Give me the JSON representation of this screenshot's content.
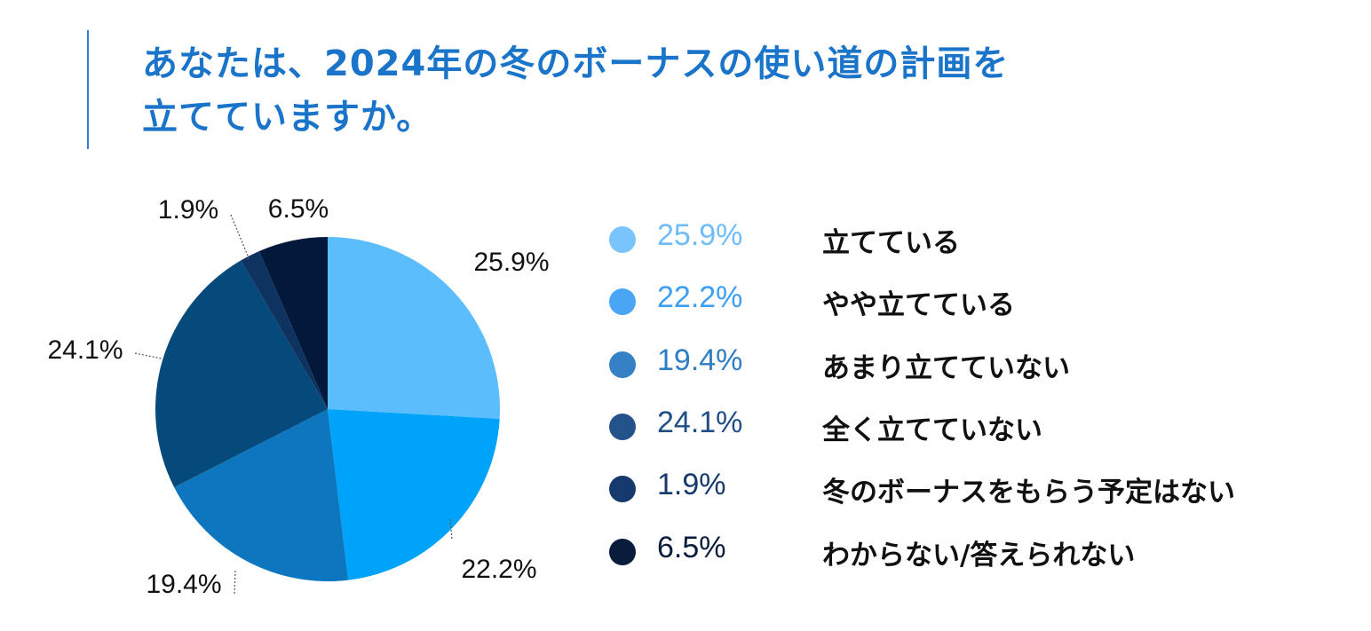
{
  "title": {
    "line1": "あなたは、2024年の冬のボーナスの使い道の計画を",
    "line2": "立てていますか。"
  },
  "chart_data": {
    "type": "pie",
    "title": "あなたは、2024年の冬のボーナスの使い道の計画を立てていますか。",
    "unit": "%",
    "start": "12 o'clock, clockwise",
    "slices": [
      {
        "label": "立てている",
        "value": 25.9,
        "display": "25.9%",
        "color": "#5bbdfb"
      },
      {
        "label": "やや立てている",
        "value": 22.2,
        "display": "22.2%",
        "color": "#00a3fa"
      },
      {
        "label": "あまり立てていない",
        "value": 19.4,
        "display": "19.4%",
        "color": "#0d76bf"
      },
      {
        "label": "全く立てていない",
        "value": 24.1,
        "display": "24.1%",
        "color": "#054a7b"
      },
      {
        "label": "冬のボーナスをもらう予定はない",
        "value": 1.9,
        "display": "1.9%",
        "color": "#0f3360"
      },
      {
        "label": "わからない/答えられない",
        "value": 6.5,
        "display": "6.5%",
        "color": "#02193b"
      }
    ]
  },
  "legend": {
    "dot_colors": [
      "#79c4fb",
      "#4aa6f5",
      "#3680c6",
      "#23538a",
      "#163a6b",
      "#0a1c3c"
    ],
    "value_colors": [
      "#6fbdf7",
      "#3d9ff2",
      "#2e7ec4",
      "#1f4f86",
      "#163a6b",
      "#0a1c3c"
    ]
  }
}
